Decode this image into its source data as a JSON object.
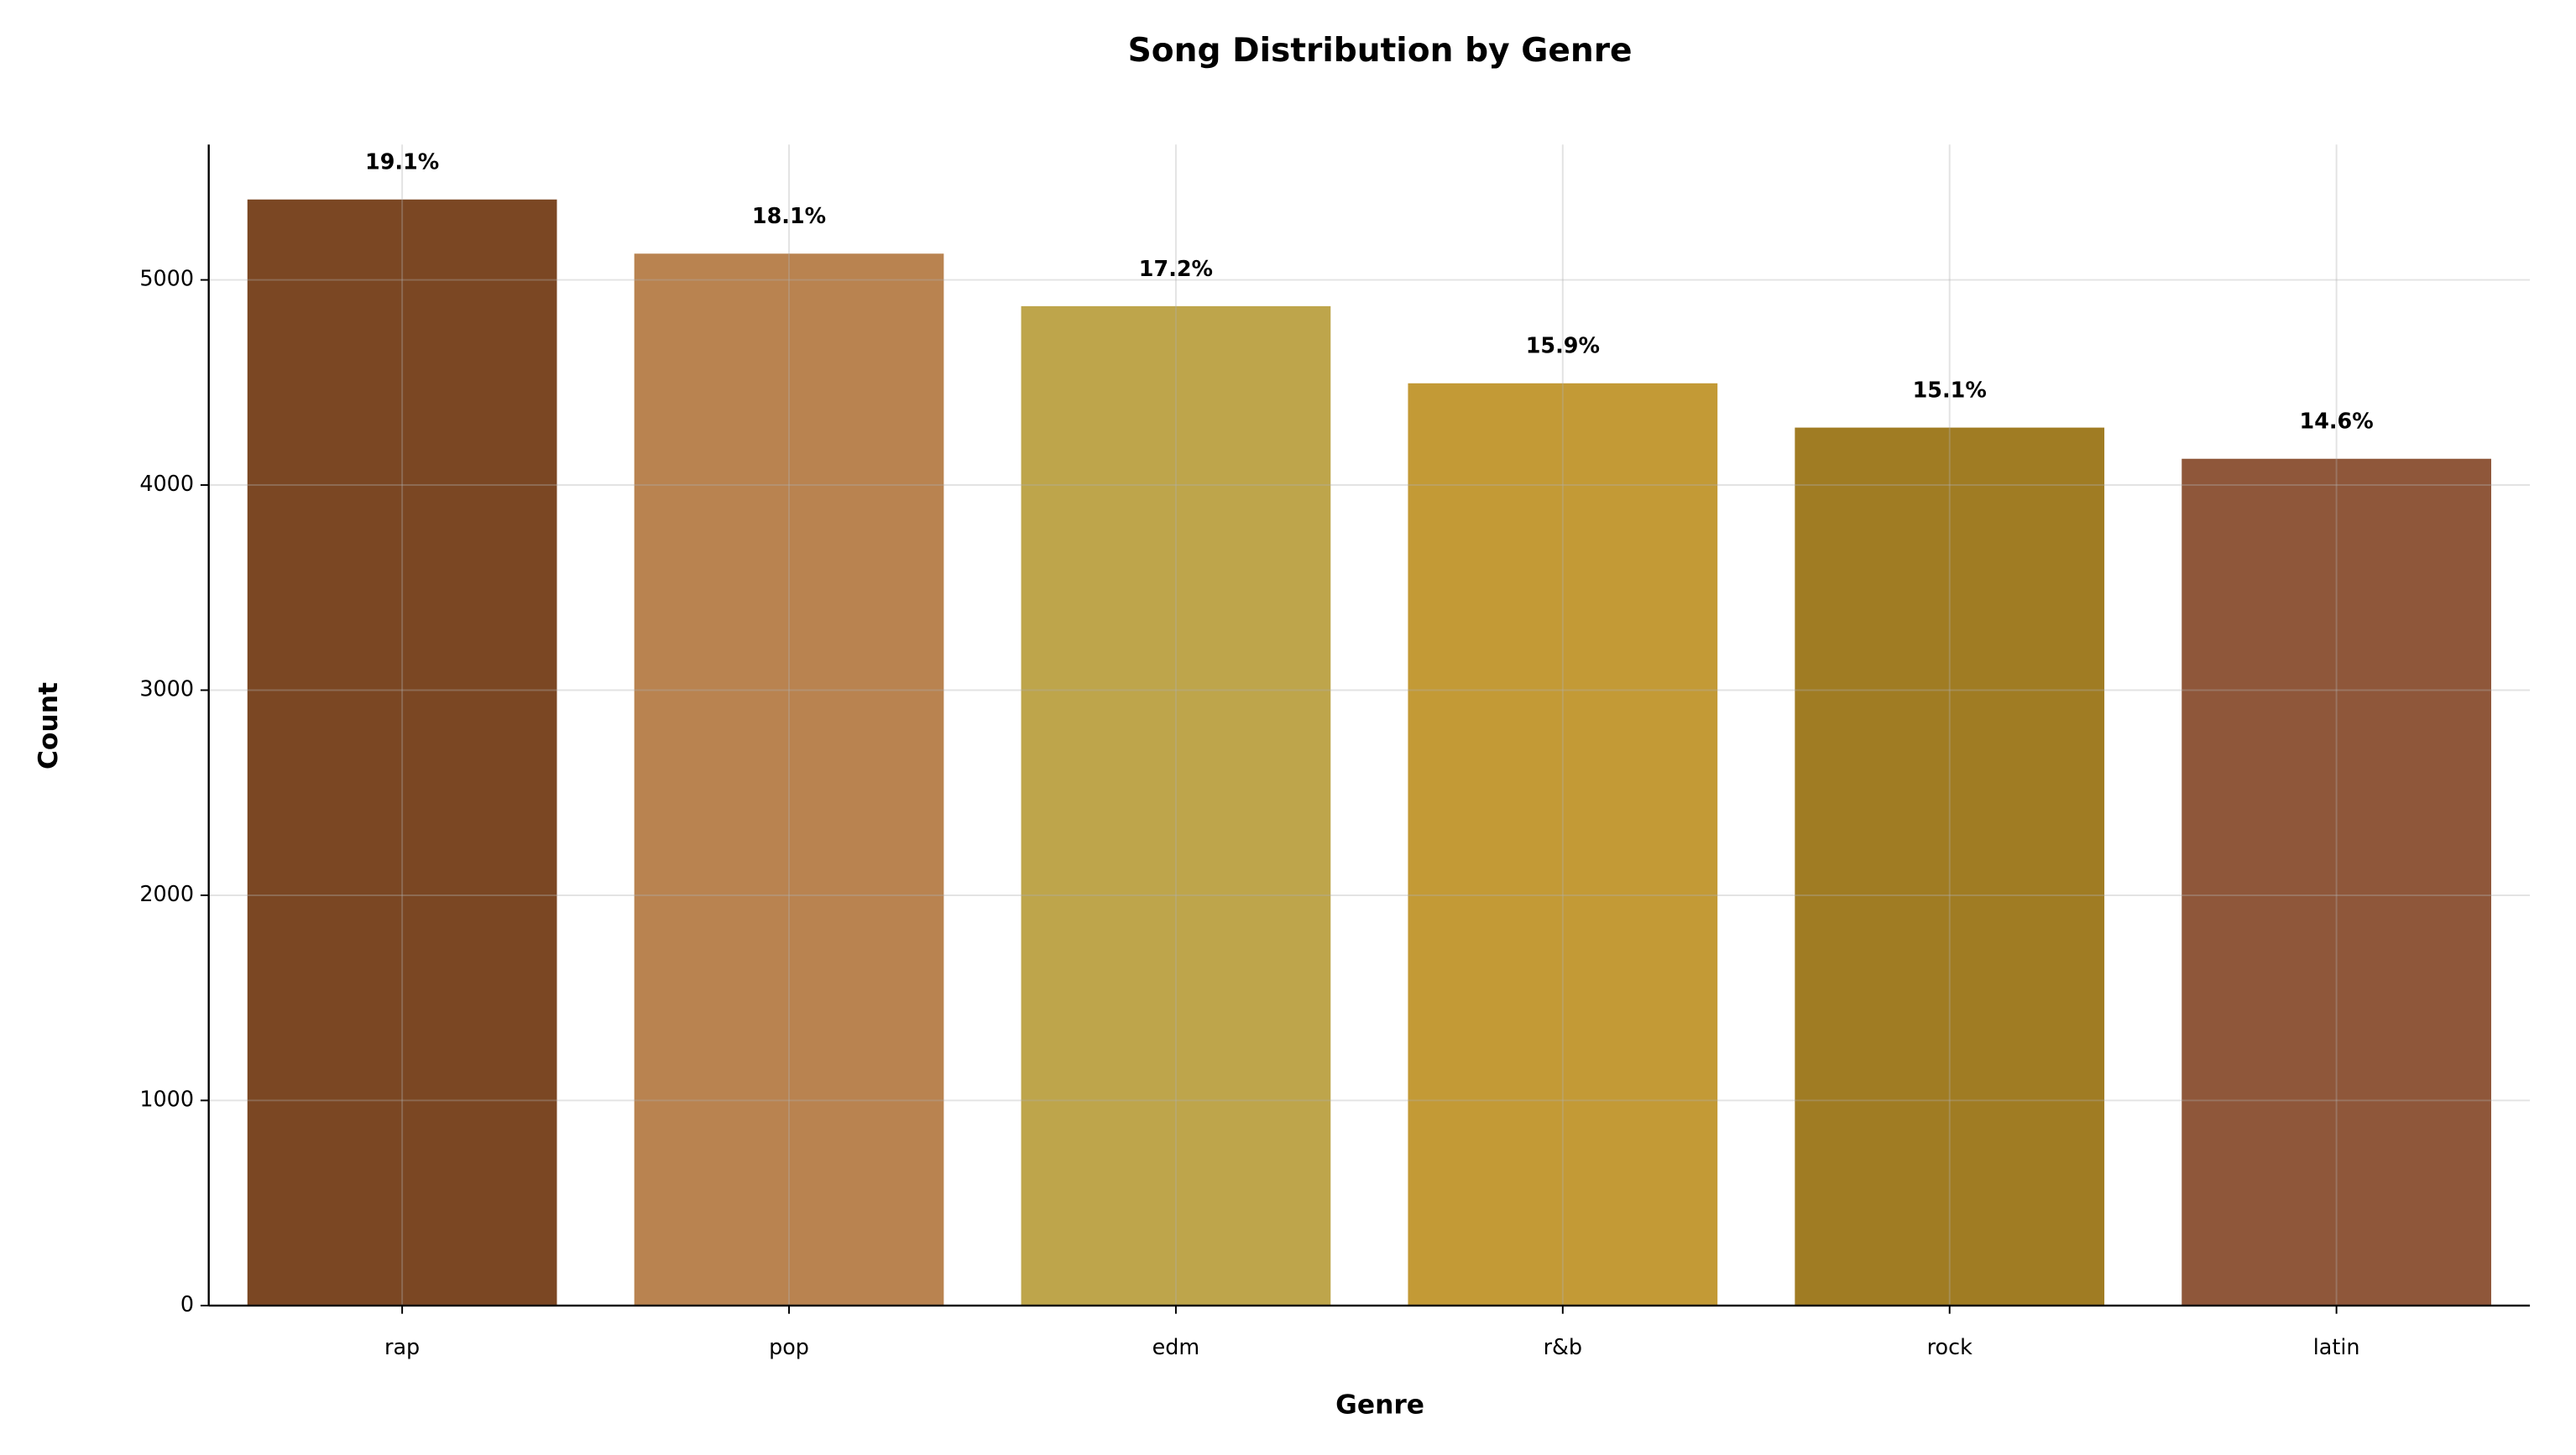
{
  "chart_data": {
    "type": "bar",
    "title": "Song Distribution by Genre",
    "x_label": "Genre",
    "y_label": "Count",
    "categories": [
      "rap",
      "pop",
      "edm",
      "r&b",
      "rock",
      "latin"
    ],
    "values": [
      5392,
      5128,
      4872,
      4496,
      4280,
      4128
    ],
    "percent_labels": [
      "19.1%",
      "18.1%",
      "17.2%",
      "15.9%",
      "15.1%",
      "14.6%"
    ],
    "colors": [
      "#7b4723",
      "#b98350",
      "#bea54b",
      "#c39a36",
      "#a07c23",
      "#8f573a"
    ],
    "ylim": [
      0,
      5660
    ],
    "yticks": [
      0,
      1000,
      2000,
      3000,
      4000,
      5000
    ],
    "grid": true
  }
}
